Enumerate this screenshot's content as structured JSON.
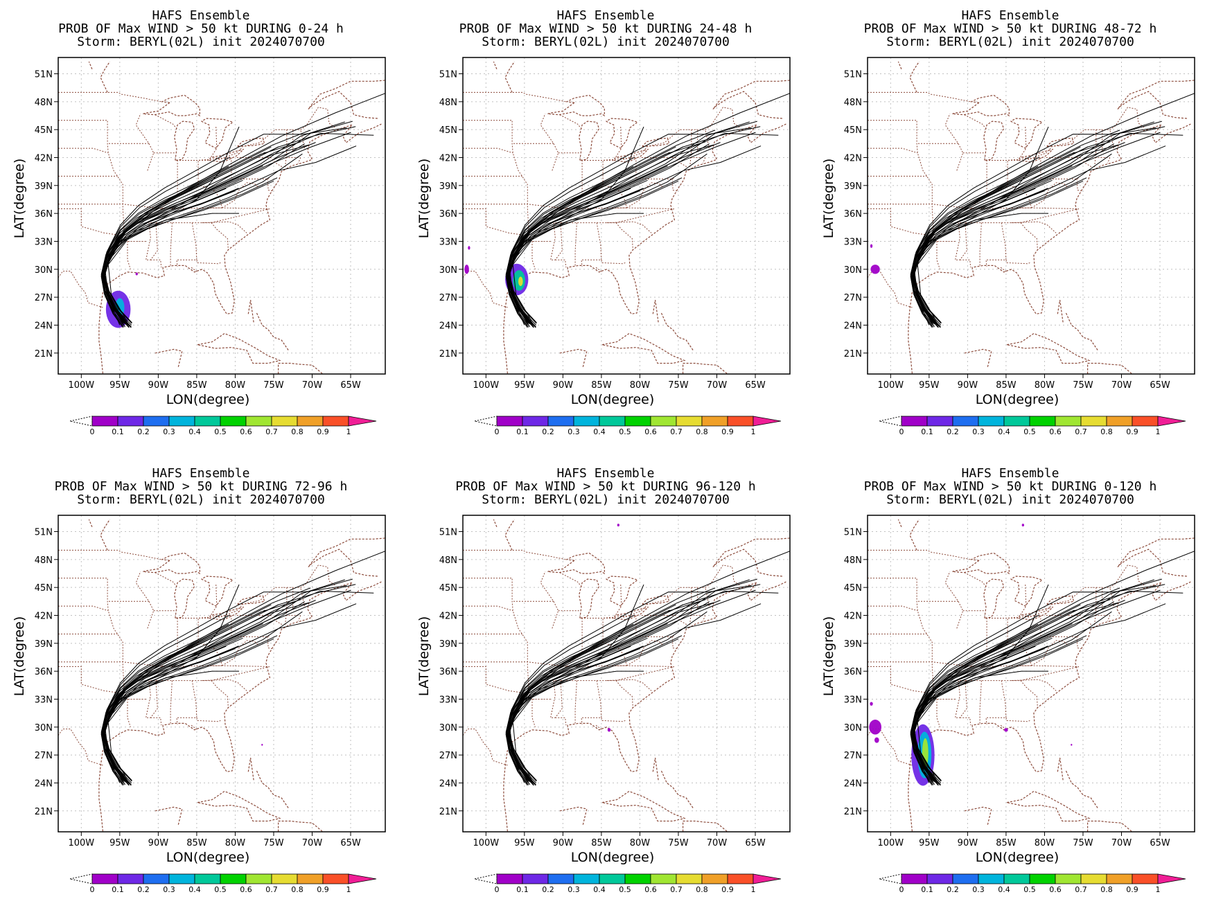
{
  "figure": {
    "colorbar": {
      "labels": [
        "0",
        "0.1",
        "0.2",
        "0.3",
        "0.4",
        "0.5",
        "0.6",
        "0.7",
        "0.8",
        "0.9",
        "1"
      ],
      "colors": [
        "#a000c8",
        "#6e28e6",
        "#1e6ef0",
        "#00b4dc",
        "#00c89a",
        "#00d200",
        "#a0e632",
        "#e6dc32",
        "#f0a028",
        "#fa5028",
        "#f01e96"
      ]
    },
    "colors": {
      "frame": "#000000",
      "coast": "#8b4a3a",
      "grid": "#c0c0c0",
      "track": "#000000",
      "prob_low": "#8a00e0",
      "prob_mid": "#00c8b4",
      "prob_high": "#d8e040"
    }
  },
  "chart_data": [
    {
      "type": "heatmap",
      "title_lines": [
        "HAFS Ensemble",
        "PROB OF Max WIND > 50 kt DURING  0-24 h",
        "Storm: BERYL(02L) init 2024070700"
      ],
      "xlabel": "LON(degree)",
      "ylabel": "LAT(degree)",
      "xlim": [
        -103,
        -60.5
      ],
      "ylim": [
        18.75,
        52.75
      ],
      "xticks": [
        -100,
        -95,
        -90,
        -85,
        -80,
        -75,
        -70,
        -65
      ],
      "xticklabels": [
        "100W",
        "95W",
        "90W",
        "85W",
        "80W",
        "75W",
        "70W",
        "65W"
      ],
      "yticks": [
        21,
        24,
        27,
        30,
        33,
        36,
        39,
        42,
        45,
        48,
        51
      ],
      "yticklabels": [
        "21N",
        "24N",
        "27N",
        "30N",
        "33N",
        "36N",
        "39N",
        "42N",
        "45N",
        "48N",
        "51N"
      ],
      "grid": true,
      "prob_regions": [
        {
          "lon": -95.2,
          "lat": 25.7,
          "rlon": 1.6,
          "rlat": 2.0,
          "p": 0.12
        },
        {
          "lon": -95.0,
          "lat": 25.9,
          "rlon": 0.6,
          "rlat": 1.0,
          "p": 0.35
        },
        {
          "lon": -92.8,
          "lat": 29.5,
          "rlon": 0.15,
          "rlat": 0.15,
          "p": 0.05
        }
      ]
    },
    {
      "type": "heatmap",
      "title_lines": [
        "HAFS Ensemble",
        "PROB OF Max WIND > 50 kt DURING 24-48 h",
        "Storm: BERYL(02L) init 2024070700"
      ],
      "xlabel": "LON(degree)",
      "ylabel": "LAT(degree)",
      "xlim": [
        -103,
        -60.5
      ],
      "ylim": [
        18.75,
        52.75
      ],
      "xticks": [
        -100,
        -95,
        -90,
        -85,
        -80,
        -75,
        -70,
        -65
      ],
      "xticklabels": [
        "100W",
        "95W",
        "90W",
        "85W",
        "80W",
        "75W",
        "70W",
        "65W"
      ],
      "yticks": [
        21,
        24,
        27,
        30,
        33,
        36,
        39,
        42,
        45,
        48,
        51
      ],
      "yticklabels": [
        "21N",
        "24N",
        "27N",
        "30N",
        "33N",
        "36N",
        "39N",
        "42N",
        "45N",
        "48N",
        "51N"
      ],
      "grid": true,
      "prob_regions": [
        {
          "lon": -96.0,
          "lat": 28.9,
          "rlon": 1.5,
          "rlat": 1.7,
          "p": 0.12
        },
        {
          "lon": -95.7,
          "lat": 28.8,
          "rlon": 0.8,
          "rlat": 1.1,
          "p": 0.4
        },
        {
          "lon": -95.5,
          "lat": 28.7,
          "rlon": 0.3,
          "rlat": 0.5,
          "p": 0.7
        },
        {
          "lon": -102.5,
          "lat": 30.0,
          "rlon": 0.3,
          "rlat": 0.5,
          "p": 0.05
        },
        {
          "lon": -102.2,
          "lat": 32.3,
          "rlon": 0.15,
          "rlat": 0.2,
          "p": 0.05
        }
      ]
    },
    {
      "type": "heatmap",
      "title_lines": [
        "HAFS Ensemble",
        "PROB OF Max WIND > 50 kt DURING 48-72 h",
        "Storm: BERYL(02L) init 2024070700"
      ],
      "xlabel": "LON(degree)",
      "ylabel": "LAT(degree)",
      "xlim": [
        -103,
        -60.5
      ],
      "ylim": [
        18.75,
        52.75
      ],
      "xticks": [
        -100,
        -95,
        -90,
        -85,
        -80,
        -75,
        -70,
        -65
      ],
      "xticklabels": [
        "100W",
        "95W",
        "90W",
        "85W",
        "80W",
        "75W",
        "70W",
        "65W"
      ],
      "yticks": [
        21,
        24,
        27,
        30,
        33,
        36,
        39,
        42,
        45,
        48,
        51
      ],
      "yticklabels": [
        "21N",
        "24N",
        "27N",
        "30N",
        "33N",
        "36N",
        "39N",
        "42N",
        "45N",
        "48N",
        "51N"
      ],
      "grid": true,
      "prob_regions": [
        {
          "lon": -102.0,
          "lat": 30.0,
          "rlon": 0.6,
          "rlat": 0.5,
          "p": 0.06
        },
        {
          "lon": -102.5,
          "lat": 32.5,
          "rlon": 0.15,
          "rlat": 0.2,
          "p": 0.05
        }
      ]
    },
    {
      "type": "heatmap",
      "title_lines": [
        "HAFS Ensemble",
        "PROB OF Max WIND > 50 kt DURING 72-96 h",
        "Storm: BERYL(02L) init 2024070700"
      ],
      "xlabel": "LON(degree)",
      "ylabel": "LAT(degree)",
      "xlim": [
        -103,
        -60.5
      ],
      "ylim": [
        18.75,
        52.75
      ],
      "xticks": [
        -100,
        -95,
        -90,
        -85,
        -80,
        -75,
        -70,
        -65
      ],
      "xticklabels": [
        "100W",
        "95W",
        "90W",
        "85W",
        "80W",
        "75W",
        "70W",
        "65W"
      ],
      "yticks": [
        21,
        24,
        27,
        30,
        33,
        36,
        39,
        42,
        45,
        48,
        51
      ],
      "yticklabels": [
        "21N",
        "24N",
        "27N",
        "30N",
        "33N",
        "36N",
        "39N",
        "42N",
        "45N",
        "48N",
        "51N"
      ],
      "grid": true,
      "prob_regions": [
        {
          "lon": -76.5,
          "lat": 28.1,
          "rlon": 0.1,
          "rlat": 0.1,
          "p": 0.04
        }
      ]
    },
    {
      "type": "heatmap",
      "title_lines": [
        "HAFS Ensemble",
        "PROB OF Max WIND > 50 kt DURING 96-120 h",
        "Storm: BERYL(02L) init 2024070700"
      ],
      "xlabel": "LON(degree)",
      "ylabel": "LAT(degree)",
      "xlim": [
        -103,
        -60.5
      ],
      "ylim": [
        18.75,
        52.75
      ],
      "xticks": [
        -100,
        -95,
        -90,
        -85,
        -80,
        -75,
        -70,
        -65
      ],
      "xticklabels": [
        "100W",
        "95W",
        "90W",
        "85W",
        "80W",
        "75W",
        "70W",
        "65W"
      ],
      "yticks": [
        21,
        24,
        27,
        30,
        33,
        36,
        39,
        42,
        45,
        48,
        51
      ],
      "yticklabels": [
        "21N",
        "24N",
        "27N",
        "30N",
        "33N",
        "36N",
        "39N",
        "42N",
        "45N",
        "48N",
        "51N"
      ],
      "grid": true,
      "prob_regions": [
        {
          "lon": -84.0,
          "lat": 29.7,
          "rlon": 0.2,
          "rlat": 0.2,
          "p": 0.05
        },
        {
          "lon": -82.8,
          "lat": 51.7,
          "rlon": 0.15,
          "rlat": 0.15,
          "p": 0.05
        }
      ]
    },
    {
      "type": "heatmap",
      "title_lines": [
        "HAFS Ensemble",
        "PROB OF Max WIND > 50 kt DURING 0-120 h",
        "Storm: BERYL(02L) init 2024070700"
      ],
      "xlabel": "LON(degree)",
      "ylabel": "LAT(degree)",
      "xlim": [
        -103,
        -60.5
      ],
      "ylim": [
        18.75,
        52.75
      ],
      "xticks": [
        -100,
        -95,
        -90,
        -85,
        -80,
        -75,
        -70,
        -65
      ],
      "xticklabels": [
        "100W",
        "95W",
        "90W",
        "85W",
        "80W",
        "75W",
        "70W",
        "65W"
      ],
      "yticks": [
        21,
        24,
        27,
        30,
        33,
        36,
        39,
        42,
        45,
        48,
        51
      ],
      "yticklabels": [
        "21N",
        "24N",
        "27N",
        "30N",
        "33N",
        "36N",
        "39N",
        "42N",
        "45N",
        "48N",
        "51N"
      ],
      "grid": true,
      "prob_regions": [
        {
          "lon": -95.8,
          "lat": 27.0,
          "rlon": 1.5,
          "rlat": 3.3,
          "p": 0.12
        },
        {
          "lon": -95.6,
          "lat": 27.0,
          "rlon": 0.9,
          "rlat": 2.5,
          "p": 0.35
        },
        {
          "lon": -95.5,
          "lat": 27.2,
          "rlon": 0.4,
          "rlat": 1.6,
          "p": 0.65
        },
        {
          "lon": -102.0,
          "lat": 30.0,
          "rlon": 0.8,
          "rlat": 0.8,
          "p": 0.06
        },
        {
          "lon": -101.8,
          "lat": 28.6,
          "rlon": 0.3,
          "rlat": 0.3,
          "p": 0.05
        },
        {
          "lon": -102.5,
          "lat": 32.5,
          "rlon": 0.2,
          "rlat": 0.2,
          "p": 0.05
        },
        {
          "lon": -85.0,
          "lat": 29.7,
          "rlon": 0.25,
          "rlat": 0.2,
          "p": 0.05
        },
        {
          "lon": -82.8,
          "lat": 51.7,
          "rlon": 0.15,
          "rlat": 0.15,
          "p": 0.05
        },
        {
          "lon": -76.5,
          "lat": 28.1,
          "rlon": 0.1,
          "rlat": 0.1,
          "p": 0.04
        }
      ]
    }
  ]
}
